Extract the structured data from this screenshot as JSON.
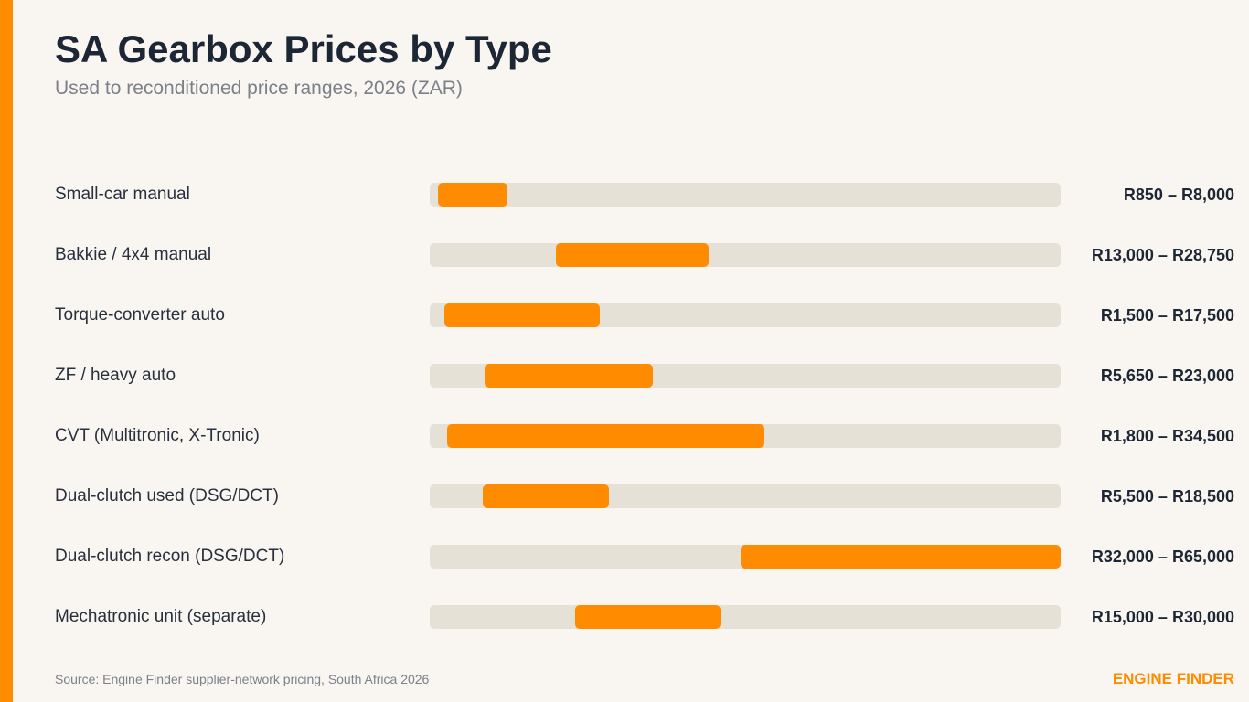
{
  "header": {
    "title": "SA Gearbox Prices by Type",
    "subtitle": "Used to reconditioned price ranges, 2026 (ZAR)"
  },
  "footer": {
    "source": "Source: Engine Finder supplier-network pricing, South Africa 2026",
    "brand": "ENGINE FINDER"
  },
  "colors": {
    "accent": "#ff8c00",
    "track": "#e5e1d6",
    "background": "#f9f6f1",
    "text": "#1c2634"
  },
  "chart_data": {
    "type": "bar",
    "orientation": "horizontal",
    "style": "floating-range",
    "title": "SA Gearbox Prices by Type",
    "subtitle": "Used to reconditioned price ranges, 2026 (ZAR)",
    "xlim": [
      0,
      65000
    ],
    "grid": false,
    "legend": "none",
    "rows": [
      {
        "label": "Small-car manual",
        "min": 850,
        "max": 8000,
        "value_label": "R850 – R8,000"
      },
      {
        "label": "Bakkie / 4x4 manual",
        "min": 13000,
        "max": 28750,
        "value_label": "R13,000 – R28,750"
      },
      {
        "label": "Torque-converter auto",
        "min": 1500,
        "max": 17500,
        "value_label": "R1,500 – R17,500"
      },
      {
        "label": "ZF / heavy auto",
        "min": 5650,
        "max": 23000,
        "value_label": "R5,650 – R23,000"
      },
      {
        "label": "CVT (Multitronic, X-Tronic)",
        "min": 1800,
        "max": 34500,
        "value_label": "R1,800 – R34,500"
      },
      {
        "label": "Dual-clutch used (DSG/DCT)",
        "min": 5500,
        "max": 18500,
        "value_label": "R5,500 – R18,500"
      },
      {
        "label": "Dual-clutch recon (DSG/DCT)",
        "min": 32000,
        "max": 65000,
        "value_label": "R32,000 – R65,000"
      },
      {
        "label": "Mechatronic unit (separate)",
        "min": 15000,
        "max": 30000,
        "value_label": "R15,000 – R30,000"
      }
    ]
  }
}
